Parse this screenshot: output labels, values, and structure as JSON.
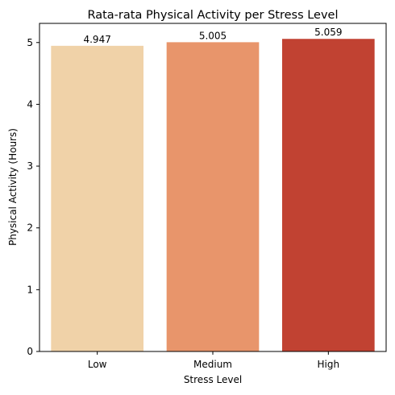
{
  "chart_data": {
    "type": "bar",
    "title": "Rata-rata Physical Activity per Stress Level",
    "xlabel": "Stress Level",
    "ylabel": "Physical Activity (Hours)",
    "categories": [
      "Low",
      "Medium",
      "High"
    ],
    "values": [
      4.947,
      5.005,
      5.059
    ],
    "data_labels": [
      "4.947",
      "5.005",
      "5.059"
    ],
    "colors": [
      "#f0d2a8",
      "#e8956b",
      "#c14232"
    ],
    "ylim": [
      0,
      5.31
    ],
    "yticks": [
      0,
      1,
      2,
      3,
      4,
      5
    ],
    "grid": false,
    "legend": "none"
  }
}
